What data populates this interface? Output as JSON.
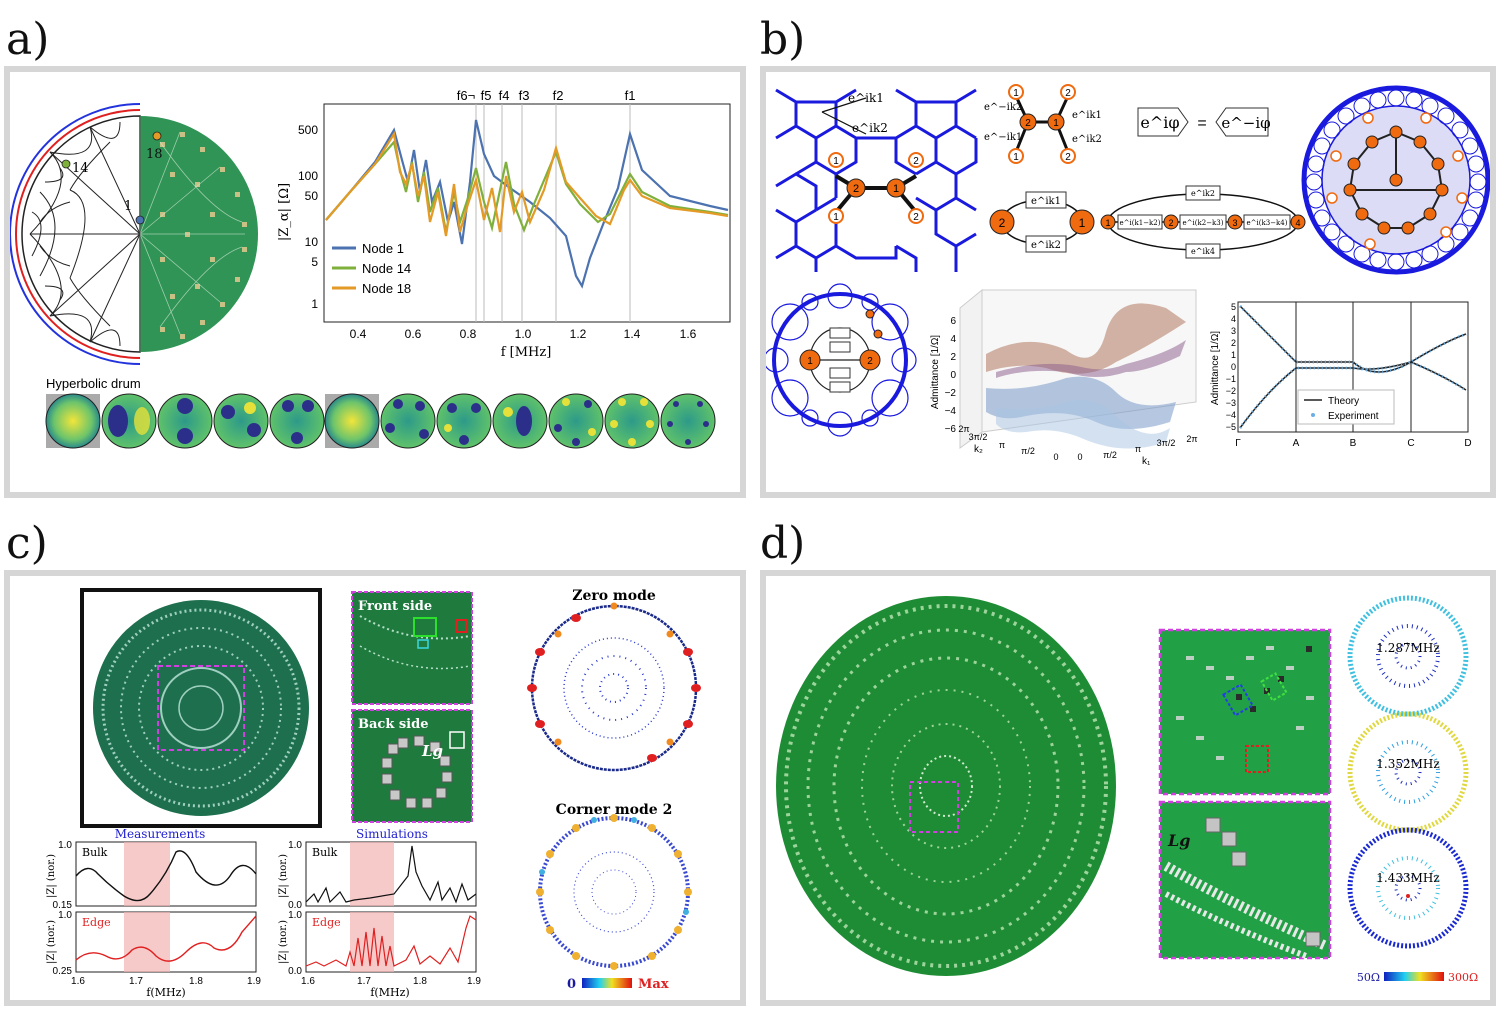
{
  "panels": {
    "a": {
      "label": "a)",
      "disk_nodes": {
        "n1": "1",
        "n14": "14",
        "n18": "18"
      },
      "plot": {
        "ylabel": "|Z_α| [Ω]",
        "xlabel": "f [MHz]",
        "yticks": [
          "500",
          "100",
          "50",
          "10",
          "5",
          "1"
        ],
        "xticks": [
          "0.4",
          "0.6",
          "0.8",
          "1.0",
          "1.2",
          "1.4",
          "1.6"
        ],
        "freq_marks": [
          "f6¬",
          "f5",
          "f4",
          "f3",
          "f2",
          "f1"
        ],
        "legend": [
          "Node 1",
          "Node 14",
          "Node 18"
        ]
      },
      "drum_title": "Hyperbolic drum"
    },
    "b": {
      "label": "b)",
      "phase_k1": "e^ik1",
      "phase_k2": "e^ik2",
      "eq_left": "e^iφ",
      "eq_sign": "=",
      "eq_right": "e^−iφ",
      "star_labels": [
        "e^−ik2",
        "e^ik1",
        "e^−ik1",
        "e^ik2"
      ],
      "graph1_phases": [
        "e^ik1",
        "e^ik2"
      ],
      "graph2_phases": [
        "e^ik2",
        "e^i(k1−k2)",
        "e^i(k2−k3)",
        "e^i(k3−k4)",
        "e^ik4"
      ],
      "surface": {
        "zlabel": "Admittance [1/Ω]",
        "zticks": [
          "6",
          "4",
          "2",
          "0",
          "−2",
          "−4",
          "−6"
        ],
        "k1ticks": [
          "0",
          "π/2",
          "π",
          "3π/2",
          "2π"
        ],
        "k2ticks": [
          "2π",
          "3π/2",
          "π",
          "π/2",
          "0"
        ],
        "k1label": "k₁",
        "k2label": "k₂"
      },
      "band": {
        "ylabel": "Admittance [1/Ω]",
        "yticks": [
          "5",
          "4",
          "3",
          "2",
          "1",
          "0",
          "−1",
          "−2",
          "−3",
          "−4",
          "−5"
        ],
        "xticks": [
          "Γ",
          "A",
          "B",
          "C",
          "D"
        ],
        "legend": [
          "Theory",
          "Experiment"
        ]
      }
    },
    "c": {
      "label": "c)",
      "front": "Front side",
      "back": "Back side",
      "lg": "Lg",
      "zero_mode": "Zero mode",
      "corner_mode": "Corner mode 2",
      "scale_min": "0",
      "scale_max": "Max",
      "measurements": "Measurements",
      "simulations": "Simulations",
      "bulk": "Bulk",
      "edge": "Edge",
      "ylab": "|Z| (nor.)",
      "xlab": "f(MHz)",
      "meas_bulk_yticks": [
        "1.0",
        "0.15"
      ],
      "meas_edge_yticks": [
        "1.0",
        "0.25"
      ],
      "sim_bulk_yticks": [
        "1.0",
        "0.0"
      ],
      "sim_edge_yticks": [
        "1.0",
        "0.0"
      ],
      "xticks": [
        "1.6",
        "1.7",
        "1.8",
        "1.9"
      ]
    },
    "d": {
      "label": "d)",
      "lg": "Lg",
      "freqs": [
        "1.287MHz",
        "1.352MHz",
        "1.433MHz"
      ],
      "scale_min": "50Ω",
      "scale_max": "300Ω"
    }
  },
  "colors": {
    "node1": "#4c72b0",
    "node14": "#7fb03c",
    "node18": "#e39a26",
    "orange_node": "#f06a10",
    "lattice_blue": "#1a1adf",
    "pcb_green": "#1f8a3e"
  }
}
